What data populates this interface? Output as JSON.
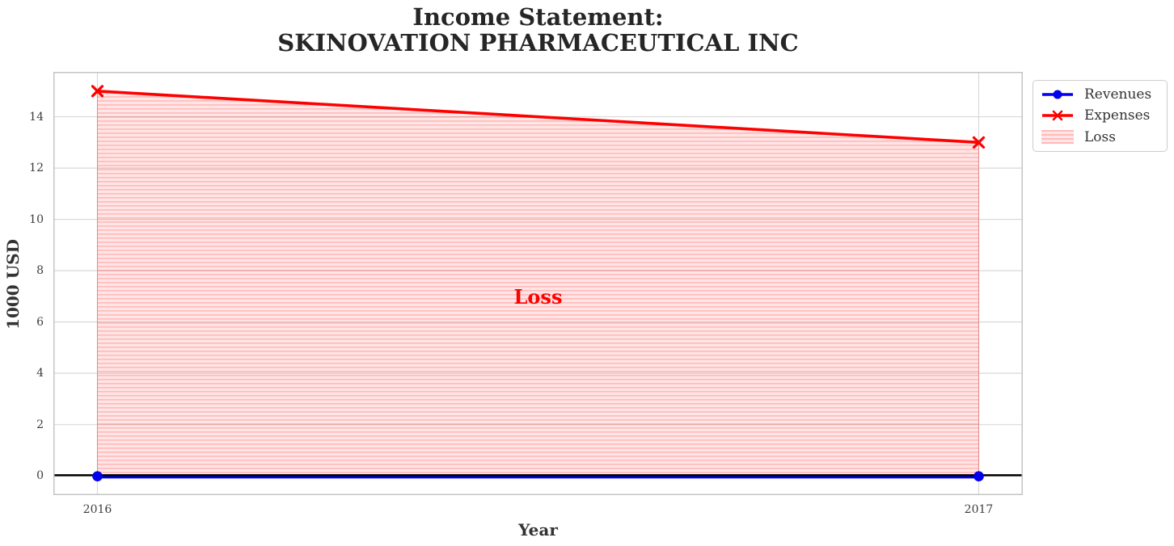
{
  "title": {
    "line1": "Income Statement:",
    "line2": "SKINOVATION PHARMACEUTICAL INC"
  },
  "chart_data": {
    "type": "line",
    "title": "Income Statement:\nSKINOVATION PHARMACEUTICAL INC",
    "xlabel": "Year",
    "ylabel": "1000 USD",
    "x": [
      2016,
      2017
    ],
    "xticks": [
      2016,
      2017
    ],
    "yticks": [
      0,
      2,
      4,
      6,
      8,
      10,
      12,
      14
    ],
    "xlim": [
      2015.95,
      2017.05
    ],
    "ylim": [
      -0.75,
      15.75
    ],
    "grid": true,
    "series": [
      {
        "name": "Revenues",
        "values": [
          0,
          0
        ],
        "color": "#0000ee",
        "marker": "circle"
      },
      {
        "name": "Expenses",
        "values": [
          15,
          13
        ],
        "color": "#ff0000",
        "marker": "x"
      }
    ],
    "loss_area": {
      "label": "Loss",
      "between": [
        "Expenses",
        "Revenues"
      ],
      "color": "#ff0000",
      "hatch": "horizontal-lines"
    },
    "annotation": {
      "text": "Loss",
      "x": 2016.5,
      "y": 7,
      "color": "#ff0000"
    },
    "zero_line_color": "#000000",
    "legend": {
      "position": "upper-right-outside",
      "entries": [
        "Revenues",
        "Expenses",
        "Loss"
      ]
    }
  },
  "colors": {
    "grid": "#d9d9d9",
    "spine": "#c4c4c4",
    "title_text": "#262626",
    "tick_text": "#3d3d3d",
    "label_text": "#333333",
    "loss_fill_base": "rgba(255,0,0,0.10)",
    "loss_fill_stripe": "rgba(255,0,0,0.17)"
  }
}
